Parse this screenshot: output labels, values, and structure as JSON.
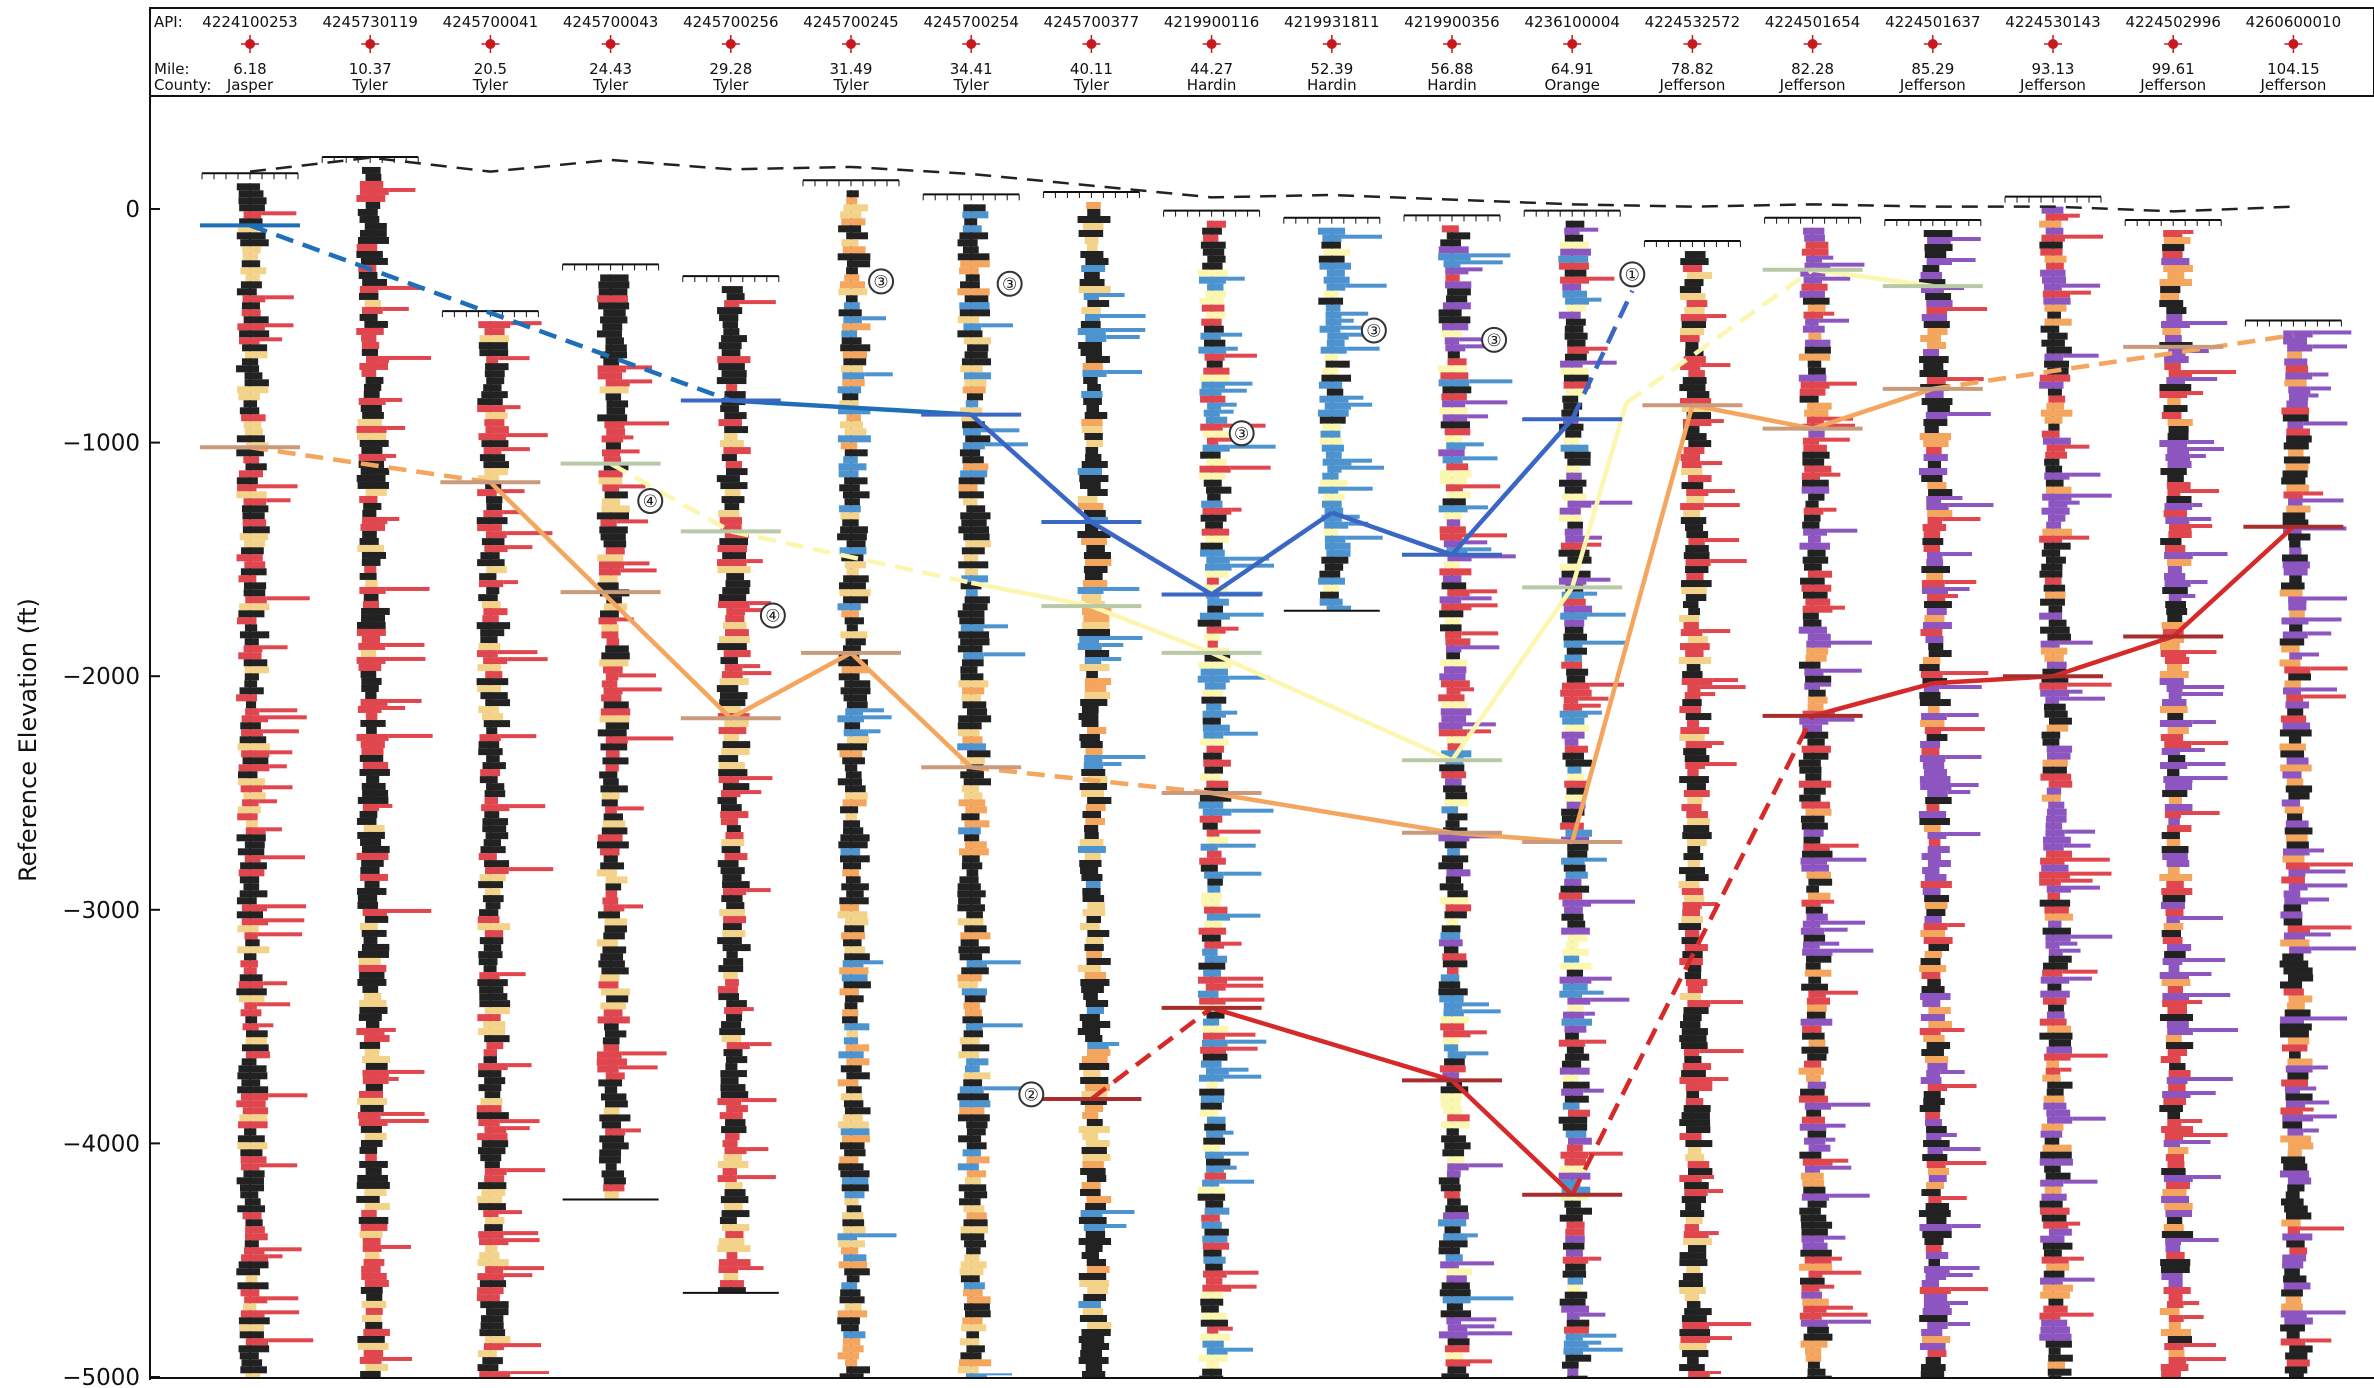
{
  "header": {
    "api_label": "API:",
    "mile_label": "Mile:",
    "county_label": "County:"
  },
  "chart_data": {
    "type": "well-log-cross-section",
    "ylabel": "Reference Elevation (ft)",
    "ylim": [
      -5000,
      300
    ],
    "yticks": [
      0,
      -1000,
      -2000,
      -3000,
      -4000,
      -5000
    ],
    "ytick_labels": [
      "0",
      "−1000",
      "−2000",
      "−3000",
      "−4000",
      "−5000"
    ],
    "wells": [
      {
        "api": "4224100253",
        "mile": "6.18",
        "county": "Jasper",
        "top": 110,
        "bottom": -5000,
        "fill": "red-black"
      },
      {
        "api": "4245730119",
        "mile": "10.37",
        "county": "Tyler",
        "top": 180,
        "bottom": -5000,
        "fill": "red-black"
      },
      {
        "api": "4245700041",
        "mile": "20.5",
        "county": "Tyler",
        "top": -480,
        "bottom": -5000,
        "fill": "red-black"
      },
      {
        "api": "4245700043",
        "mile": "24.43",
        "county": "Tyler",
        "top": -280,
        "bottom": -4240,
        "fill": "red-black"
      },
      {
        "api": "4245700256",
        "mile": "29.28",
        "county": "Tyler",
        "top": -330,
        "bottom": -4640,
        "fill": "red-black"
      },
      {
        "api": "4245700245",
        "mile": "31.49",
        "county": "Tyler",
        "top": 80,
        "bottom": -5000,
        "fill": "blue-black"
      },
      {
        "api": "4245700254",
        "mile": "34.41",
        "county": "Tyler",
        "top": 20,
        "bottom": -5000,
        "fill": "blue-black"
      },
      {
        "api": "4245700377",
        "mile": "40.11",
        "county": "Tyler",
        "top": 30,
        "bottom": -5000,
        "fill": "blue-black"
      },
      {
        "api": "4219900116",
        "mile": "44.27",
        "county": "Hardin",
        "top": -50,
        "bottom": -5000,
        "fill": "blue-red"
      },
      {
        "api": "4219931811",
        "mile": "52.39",
        "county": "Hardin",
        "top": -80,
        "bottom": -1720,
        "fill": "blue"
      },
      {
        "api": "4219900356",
        "mile": "56.88",
        "county": "Hardin",
        "top": -70,
        "bottom": -5000,
        "fill": "blue-purple"
      },
      {
        "api": "4236100004",
        "mile": "64.91",
        "county": "Orange",
        "top": -50,
        "bottom": -5000,
        "fill": "blue-purple"
      },
      {
        "api": "4224532572",
        "mile": "78.82",
        "county": "Jefferson",
        "top": -180,
        "bottom": -5000,
        "fill": "red-black"
      },
      {
        "api": "4224501654",
        "mile": "82.28",
        "county": "Jefferson",
        "top": -80,
        "bottom": -5000,
        "fill": "purple"
      },
      {
        "api": "4224501637",
        "mile": "85.29",
        "county": "Jefferson",
        "top": -90,
        "bottom": -5000,
        "fill": "purple"
      },
      {
        "api": "4224530143",
        "mile": "93.13",
        "county": "Jefferson",
        "top": 10,
        "bottom": -5000,
        "fill": "purple"
      },
      {
        "api": "4224502996",
        "mile": "99.61",
        "county": "Jefferson",
        "top": -90,
        "bottom": -5000,
        "fill": "purple"
      },
      {
        "api": "4260600010",
        "mile": "104.15",
        "county": "Jefferson",
        "top": -520,
        "bottom": -5000,
        "fill": "purple"
      }
    ],
    "surface_line": [
      {
        "well": 0,
        "y": 160
      },
      {
        "well": 1,
        "y": 220
      },
      {
        "well": 2,
        "y": 160
      },
      {
        "well": 3,
        "y": 210
      },
      {
        "well": 4,
        "y": 170
      },
      {
        "well": 5,
        "y": 180
      },
      {
        "well": 6,
        "y": 150
      },
      {
        "well": 7,
        "y": 100
      },
      {
        "well": 8,
        "y": 50
      },
      {
        "well": 9,
        "y": 60
      },
      {
        "well": 10,
        "y": 40
      },
      {
        "well": 11,
        "y": 20
      },
      {
        "well": 12,
        "y": 10
      },
      {
        "well": 13,
        "y": 20
      },
      {
        "well": 14,
        "y": 10
      },
      {
        "well": 15,
        "y": 10
      },
      {
        "well": 16,
        "y": -10
      },
      {
        "well": 17,
        "y": 10
      }
    ],
    "correlation_lines": [
      {
        "color": "#1f6fb8",
        "segments": [
          {
            "from": [
              0,
              -70
            ],
            "to": [
              4,
              -820
            ],
            "dash": true
          },
          {
            "from": [
              4,
              -820
            ],
            "to": [
              5,
              -850
            ],
            "dash": false
          },
          {
            "from": [
              5,
              -850
            ],
            "to": [
              6,
              -880
            ],
            "dash": false
          }
        ]
      },
      {
        "color": "#3a66c4",
        "segments": [
          {
            "from": [
              6,
              -880
            ],
            "to": [
              7,
              -1340
            ],
            "dash": false
          },
          {
            "from": [
              7,
              -1340
            ],
            "to": [
              8,
              -1650
            ],
            "dash": false
          },
          {
            "from": [
              8,
              -1650
            ],
            "to": [
              9,
              -1300
            ],
            "dash": false
          },
          {
            "from": [
              9,
              -1300
            ],
            "to": [
              10,
              -1480
            ],
            "dash": false
          },
          {
            "from": [
              10,
              -1480
            ],
            "to": [
              11,
              -900
            ],
            "dash": false
          },
          {
            "from": [
              11,
              -900
            ],
            "to": [
              11.5,
              -350
            ],
            "dash": true
          }
        ]
      },
      {
        "color": "#fbf6b0",
        "segments": [
          {
            "from": [
              3,
              -1090
            ],
            "to": [
              4,
              -1380
            ],
            "dash": true
          },
          {
            "from": [
              4,
              -1380
            ],
            "to": [
              6,
              -1600
            ],
            "dash": true
          },
          {
            "from": [
              6,
              -1600
            ],
            "to": [
              7,
              -1700
            ],
            "dash": false
          },
          {
            "from": [
              7,
              -1700
            ],
            "to": [
              8,
              -1900
            ],
            "dash": false
          },
          {
            "from": [
              8,
              -1900
            ],
            "to": [
              10,
              -2360
            ],
            "dash": false
          },
          {
            "from": [
              10,
              -2360
            ],
            "to": [
              11,
              -1620
            ],
            "dash": false
          },
          {
            "from": [
              11,
              -1620
            ],
            "to": [
              11.45,
              -830
            ],
            "dash": false
          },
          {
            "from": [
              11.45,
              -830
            ],
            "to": [
              13,
              -260
            ],
            "dash": true
          },
          {
            "from": [
              13,
              -260
            ],
            "to": [
              14,
              -330
            ],
            "dash": false
          }
        ]
      },
      {
        "color": "#f4a55e",
        "segments": [
          {
            "from": [
              0,
              -1020
            ],
            "to": [
              2,
              -1170
            ],
            "dash": true
          },
          {
            "from": [
              2,
              -1170
            ],
            "to": [
              4,
              -2180
            ],
            "dash": false
          },
          {
            "from": [
              4,
              -2180
            ],
            "to": [
              5,
              -1900
            ],
            "dash": false
          },
          {
            "from": [
              5,
              -1900
            ],
            "to": [
              6,
              -2390
            ],
            "dash": false
          },
          {
            "from": [
              6,
              -2390
            ],
            "to": [
              8,
              -2500
            ],
            "dash": true
          },
          {
            "from": [
              8,
              -2500
            ],
            "to": [
              10,
              -2670
            ],
            "dash": false
          },
          {
            "from": [
              10,
              -2670
            ],
            "to": [
              11,
              -2710
            ],
            "dash": false
          },
          {
            "from": [
              11,
              -2710
            ],
            "to": [
              12,
              -840
            ],
            "dash": false
          },
          {
            "from": [
              12,
              -840
            ],
            "to": [
              13,
              -940
            ],
            "dash": false
          },
          {
            "from": [
              13,
              -940
            ],
            "to": [
              14,
              -770
            ],
            "dash": false
          },
          {
            "from": [
              14,
              -770
            ],
            "to": [
              17,
              -540
            ],
            "dash": true
          }
        ]
      },
      {
        "color": "#d62a2a",
        "segments": [
          {
            "from": [
              7,
              -3810
            ],
            "to": [
              8,
              -3420
            ],
            "dash": true
          },
          {
            "from": [
              8,
              -3420
            ],
            "to": [
              10,
              -3730
            ],
            "dash": false
          },
          {
            "from": [
              10,
              -3730
            ],
            "to": [
              11,
              -4220
            ],
            "dash": false
          },
          {
            "from": [
              11,
              -4220
            ],
            "to": [
              13,
              -2170
            ],
            "dash": true
          },
          {
            "from": [
              13,
              -2170
            ],
            "to": [
              14,
              -2030
            ],
            "dash": false
          },
          {
            "from": [
              14,
              -2030
            ],
            "to": [
              15,
              -2000
            ],
            "dash": false
          },
          {
            "from": [
              15,
              -2000
            ],
            "to": [
              16,
              -1830
            ],
            "dash": false
          },
          {
            "from": [
              16,
              -1830
            ],
            "to": [
              17,
              -1360
            ],
            "dash": false
          }
        ]
      }
    ],
    "pick_markers": [
      {
        "well": 0,
        "y": -70,
        "color": "#1f6fb8"
      },
      {
        "well": 4,
        "y": -820,
        "color": "#3a66c4"
      },
      {
        "well": 6,
        "y": -880,
        "color": "#3a66c4"
      },
      {
        "well": 7,
        "y": -1340,
        "color": "#3a66c4"
      },
      {
        "well": 8,
        "y": -1650,
        "color": "#3a66c4"
      },
      {
        "well": 10,
        "y": -1480,
        "color": "#3a66c4"
      },
      {
        "well": 11,
        "y": -900,
        "color": "#3a66c4"
      },
      {
        "well": 3,
        "y": -1090,
        "color": "#b9c9a6"
      },
      {
        "well": 4,
        "y": -1380,
        "color": "#b9c9a6"
      },
      {
        "well": 7,
        "y": -1700,
        "color": "#b9c9a6"
      },
      {
        "well": 8,
        "y": -1900,
        "color": "#b9c9a6"
      },
      {
        "well": 10,
        "y": -2360,
        "color": "#b9c9a6"
      },
      {
        "well": 11,
        "y": -1620,
        "color": "#b9c9a6"
      },
      {
        "well": 13,
        "y": -260,
        "color": "#b9c9a6"
      },
      {
        "well": 14,
        "y": -330,
        "color": "#b9c9a6"
      },
      {
        "well": 0,
        "y": -1020,
        "color": "#c99a7c"
      },
      {
        "well": 2,
        "y": -1170,
        "color": "#c99a7c"
      },
      {
        "well": 3,
        "y": -1640,
        "color": "#c99a7c"
      },
      {
        "well": 4,
        "y": -2180,
        "color": "#c99a7c"
      },
      {
        "well": 5,
        "y": -1900,
        "color": "#c99a7c"
      },
      {
        "well": 6,
        "y": -2390,
        "color": "#c99a7c"
      },
      {
        "well": 8,
        "y": -2500,
        "color": "#c99a7c"
      },
      {
        "well": 10,
        "y": -2670,
        "color": "#c99a7c"
      },
      {
        "well": 11,
        "y": -2710,
        "color": "#c99a7c"
      },
      {
        "well": 12,
        "y": -840,
        "color": "#c99a7c"
      },
      {
        "well": 13,
        "y": -940,
        "color": "#c99a7c"
      },
      {
        "well": 14,
        "y": -770,
        "color": "#c99a7c"
      },
      {
        "well": 16,
        "y": -590,
        "color": "#c99a7c"
      },
      {
        "well": 7,
        "y": -3810,
        "color": "#a82d2d"
      },
      {
        "well": 8,
        "y": -3420,
        "color": "#a82d2d"
      },
      {
        "well": 10,
        "y": -3730,
        "color": "#a82d2d"
      },
      {
        "well": 11,
        "y": -4220,
        "color": "#a82d2d"
      },
      {
        "well": 13,
        "y": -2170,
        "color": "#a82d2d"
      },
      {
        "well": 15,
        "y": -2000,
        "color": "#a82d2d"
      },
      {
        "well": 16,
        "y": -1830,
        "color": "#a82d2d"
      },
      {
        "well": 17,
        "y": -1360,
        "color": "#a82d2d"
      }
    ],
    "callouts": [
      {
        "label": "①",
        "well": 11.5,
        "y": -280
      },
      {
        "label": "②",
        "well": 6.5,
        "y": -3790
      },
      {
        "label": "③",
        "well": 5.25,
        "y": -310
      },
      {
        "label": "③",
        "well": 6.32,
        "y": -320
      },
      {
        "label": "③",
        "well": 8.25,
        "y": -960
      },
      {
        "label": "③",
        "well": 9.35,
        "y": -520
      },
      {
        "label": "③",
        "well": 10.35,
        "y": -560
      },
      {
        "label": "④",
        "well": 3.33,
        "y": -1250
      },
      {
        "label": "④",
        "well": 4.35,
        "y": -1740
      }
    ]
  }
}
